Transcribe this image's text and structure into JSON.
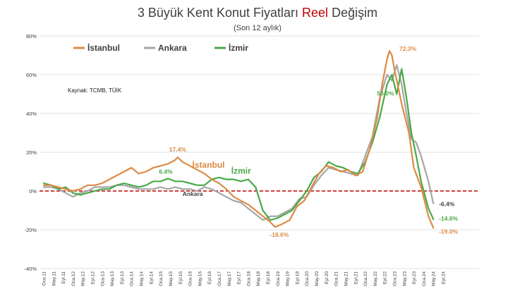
{
  "chart_data": {
    "type": "line",
    "title": {
      "prefix": "3 Büyük Kent Konut Fiyatları",
      "accent": "Reel",
      "suffix": "Değişim"
    },
    "subtitle": "(Son 12 aylık)",
    "source": "Kaynak: TCMB, TÜİK",
    "ylim": [
      -40,
      80
    ],
    "yticks": [
      -40,
      -20,
      0,
      20,
      40,
      60,
      80
    ],
    "ytick_labels": [
      "-40%",
      "-20%",
      "0%",
      "20%",
      "40%",
      "60%",
      "80%"
    ],
    "x_start": "2011-01",
    "x_end": "2024-05",
    "xtick_labels": [
      "Oca.11",
      "May.11",
      "Eyl.11",
      "Oca.12",
      "May.12",
      "Eyl.12",
      "Oca.13",
      "May.13",
      "Eyl.13",
      "Oca.14",
      "May.14",
      "Eyl.14",
      "Oca.15",
      "May.15",
      "Eyl.15",
      "Oca.16",
      "May.16",
      "Eyl.16",
      "Oca.17",
      "May.17",
      "Eyl.17",
      "Oca.18",
      "May.18",
      "Eyl.18",
      "Oca.19",
      "May.19",
      "Eyl.19",
      "Oca.20",
      "May.20",
      "Eyl.20",
      "Oca.21",
      "May.21",
      "Eyl.21",
      "Oca.22",
      "May.22",
      "Eyl.22",
      "Oca.23",
      "May.23",
      "Eyl.23",
      "Oca.24",
      "May.24",
      "Eyl.24"
    ],
    "grid": true,
    "zero_line": {
      "color": "#c00000",
      "style": "dashed"
    },
    "legend": {
      "placement": "top-left"
    },
    "series": [
      {
        "name": "İstanbul",
        "color": "#dd8a45",
        "points": [
          [
            "2011-01",
            3
          ],
          [
            "2011-04",
            3
          ],
          [
            "2011-07",
            2
          ],
          [
            "2011-10",
            1
          ],
          [
            "2012-01",
            0
          ],
          [
            "2012-04",
            1
          ],
          [
            "2012-07",
            3
          ],
          [
            "2012-10",
            3
          ],
          [
            "2013-01",
            4
          ],
          [
            "2013-04",
            6
          ],
          [
            "2013-07",
            8
          ],
          [
            "2013-10",
            10
          ],
          [
            "2014-01",
            12
          ],
          [
            "2014-04",
            9
          ],
          [
            "2014-07",
            10
          ],
          [
            "2014-10",
            12
          ],
          [
            "2015-01",
            13
          ],
          [
            "2015-04",
            14
          ],
          [
            "2015-07",
            16
          ],
          [
            "2015-08",
            17.4
          ],
          [
            "2015-10",
            15
          ],
          [
            "2016-01",
            13
          ],
          [
            "2016-04",
            11
          ],
          [
            "2016-07",
            9
          ],
          [
            "2016-10",
            6
          ],
          [
            "2017-01",
            4
          ],
          [
            "2017-04",
            1
          ],
          [
            "2017-07",
            -3
          ],
          [
            "2017-10",
            -5
          ],
          [
            "2018-01",
            -7
          ],
          [
            "2018-04",
            -10
          ],
          [
            "2018-07",
            -13
          ],
          [
            "2018-10",
            -16
          ],
          [
            "2018-12",
            -18.6
          ],
          [
            "2019-03",
            -17
          ],
          [
            "2019-06",
            -15
          ],
          [
            "2019-09",
            -8
          ],
          [
            "2019-12",
            -5
          ],
          [
            "2020-03",
            2
          ],
          [
            "2020-06",
            9
          ],
          [
            "2020-09",
            13
          ],
          [
            "2020-12",
            12
          ],
          [
            "2021-03",
            10
          ],
          [
            "2021-06",
            11
          ],
          [
            "2021-09",
            8
          ],
          [
            "2021-12",
            10
          ],
          [
            "2022-03",
            22
          ],
          [
            "2022-06",
            38
          ],
          [
            "2022-08",
            55
          ],
          [
            "2022-10",
            68
          ],
          [
            "2022-11",
            72.3
          ],
          [
            "2022-12",
            70
          ],
          [
            "2023-01",
            63
          ],
          [
            "2023-04",
            45
          ],
          [
            "2023-07",
            30
          ],
          [
            "2023-09",
            12
          ],
          [
            "2023-12",
            2
          ],
          [
            "2024-03",
            -13
          ],
          [
            "2024-05",
            -19.0
          ]
        ],
        "labels": [
          {
            "text": "17.4%",
            "x": "2015-08",
            "y": 17.4
          },
          {
            "text": "72.3%",
            "x": "2022-11",
            "y": 72.3
          },
          {
            "text": "-18.6%",
            "x": "2018-12",
            "y": -18.6
          },
          {
            "text": "-19.0%",
            "x": "2024-05",
            "y": -19.0
          }
        ],
        "inline_label": "İstanbul"
      },
      {
        "name": "Ankara",
        "color": "#a6a6a6",
        "points": [
          [
            "2011-01",
            2
          ],
          [
            "2011-04",
            2
          ],
          [
            "2011-07",
            1
          ],
          [
            "2011-10",
            -1
          ],
          [
            "2012-01",
            -3
          ],
          [
            "2012-04",
            -1
          ],
          [
            "2012-07",
            0
          ],
          [
            "2012-10",
            2
          ],
          [
            "2013-01",
            2
          ],
          [
            "2013-04",
            2
          ],
          [
            "2013-07",
            3
          ],
          [
            "2013-10",
            3
          ],
          [
            "2014-01",
            2
          ],
          [
            "2014-04",
            1
          ],
          [
            "2014-07",
            1
          ],
          [
            "2014-10",
            1
          ],
          [
            "2015-01",
            2
          ],
          [
            "2015-04",
            1
          ],
          [
            "2015-07",
            2
          ],
          [
            "2015-10",
            1
          ],
          [
            "2016-01",
            1
          ],
          [
            "2016-04",
            0
          ],
          [
            "2016-07",
            2
          ],
          [
            "2016-10",
            1
          ],
          [
            "2017-01",
            -1
          ],
          [
            "2017-04",
            -3
          ],
          [
            "2017-07",
            -5
          ],
          [
            "2017-10",
            -6
          ],
          [
            "2018-01",
            -9
          ],
          [
            "2018-04",
            -12
          ],
          [
            "2018-07",
            -15
          ],
          [
            "2018-10",
            -13
          ],
          [
            "2019-01",
            -13
          ],
          [
            "2019-04",
            -11
          ],
          [
            "2019-07",
            -9
          ],
          [
            "2019-10",
            -4
          ],
          [
            "2020-01",
            -3
          ],
          [
            "2020-04",
            3
          ],
          [
            "2020-07",
            8
          ],
          [
            "2020-10",
            12
          ],
          [
            "2021-01",
            11
          ],
          [
            "2021-04",
            10
          ],
          [
            "2021-07",
            9
          ],
          [
            "2021-10",
            8
          ],
          [
            "2022-01",
            18
          ],
          [
            "2022-04",
            28
          ],
          [
            "2022-07",
            48
          ],
          [
            "2022-10",
            60
          ],
          [
            "2022-12",
            57
          ],
          [
            "2023-02",
            65
          ],
          [
            "2023-04",
            55
          ],
          [
            "2023-06",
            40
          ],
          [
            "2023-08",
            27
          ],
          [
            "2023-10",
            25
          ],
          [
            "2023-12",
            18
          ],
          [
            "2024-03",
            5
          ],
          [
            "2024-05",
            -6.4
          ]
        ],
        "labels": [
          {
            "text": "-6.4%",
            "x": "2024-05",
            "y": -6.4
          }
        ],
        "inline_label": "Ankara"
      },
      {
        "name": "İzmir",
        "color": "#4aa84a",
        "points": [
          [
            "2011-01",
            4
          ],
          [
            "2011-04",
            3
          ],
          [
            "2011-07",
            1
          ],
          [
            "2011-10",
            2
          ],
          [
            "2012-01",
            -1
          ],
          [
            "2012-04",
            -2
          ],
          [
            "2012-07",
            -1
          ],
          [
            "2012-10",
            0
          ],
          [
            "2013-01",
            1
          ],
          [
            "2013-04",
            1
          ],
          [
            "2013-07",
            3
          ],
          [
            "2013-10",
            4
          ],
          [
            "2014-01",
            3
          ],
          [
            "2014-04",
            2
          ],
          [
            "2014-07",
            3
          ],
          [
            "2014-10",
            5
          ],
          [
            "2015-01",
            5
          ],
          [
            "2015-04",
            6.4
          ],
          [
            "2015-07",
            5
          ],
          [
            "2015-10",
            5
          ],
          [
            "2016-01",
            4
          ],
          [
            "2016-04",
            3
          ],
          [
            "2016-07",
            3
          ],
          [
            "2016-10",
            6
          ],
          [
            "2017-01",
            7
          ],
          [
            "2017-04",
            6
          ],
          [
            "2017-07",
            6
          ],
          [
            "2017-10",
            5
          ],
          [
            "2018-01",
            6
          ],
          [
            "2018-04",
            2
          ],
          [
            "2018-07",
            -10
          ],
          [
            "2018-10",
            -15
          ],
          [
            "2019-01",
            -14
          ],
          [
            "2019-04",
            -12
          ],
          [
            "2019-07",
            -10
          ],
          [
            "2019-10",
            -5
          ],
          [
            "2020-01",
            0
          ],
          [
            "2020-04",
            7
          ],
          [
            "2020-07",
            10
          ],
          [
            "2020-10",
            15
          ],
          [
            "2021-01",
            13
          ],
          [
            "2021-04",
            12
          ],
          [
            "2021-07",
            10
          ],
          [
            "2021-10",
            9
          ],
          [
            "2022-01",
            15
          ],
          [
            "2022-04",
            25
          ],
          [
            "2022-07",
            38
          ],
          [
            "2022-10",
            55
          ],
          [
            "2022-12",
            60
          ],
          [
            "2023-02",
            50.0
          ],
          [
            "2023-04",
            63
          ],
          [
            "2023-06",
            48
          ],
          [
            "2023-08",
            30
          ],
          [
            "2023-10",
            18
          ],
          [
            "2023-12",
            5
          ],
          [
            "2024-03",
            -9
          ],
          [
            "2024-05",
            -14.6
          ]
        ],
        "labels": [
          {
            "text": "6.4%",
            "x": "2015-04",
            "y": 6.4
          },
          {
            "text": "50.0%",
            "x": "2023-02",
            "y": 50.0
          },
          {
            "text": "-14.6%",
            "x": "2024-05",
            "y": -14.6
          }
        ],
        "inline_label": "İzmir"
      }
    ]
  }
}
